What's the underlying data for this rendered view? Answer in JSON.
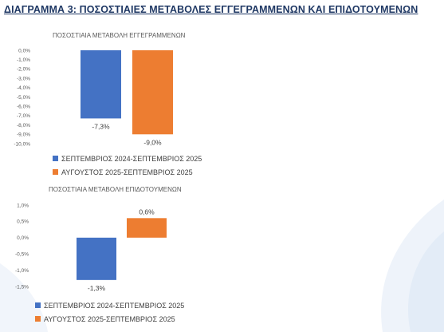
{
  "page": {
    "title": "ΔΙΑΓΡΑΜΜΑ 3: ΠΟΣΟΣΤΙΑΙΕΣ ΜΕΤΑΒΟΛΕΣ ΕΓΓΕΓΡΑΜΜΕΝΩΝ ΚΑΙ ΕΠΙΔΟΤΟΥΜΕΝΩΝ"
  },
  "colors": {
    "title": "#1f3864",
    "series_1": "#4472c4",
    "series_2": "#ed7d31",
    "text": "#595959"
  },
  "chart_data": [
    {
      "type": "bar",
      "title": "ΠΟΣΟΣΤΙΑΙΑ ΜΕΤΑΒΟΛΗ ΕΓΓΕΓΡΑΜΜΕΝΩΝ",
      "categories": [
        ""
      ],
      "series": [
        {
          "name": "ΣΕΠΤΕΜΒΡΙΟΣ 2024-ΣΕΠΤΕΜΒΡΙΟΣ 2025",
          "values": [
            -7.3
          ],
          "label": "-7,3%"
        },
        {
          "name": "ΑΥΓΟΥΣΤΟΣ 2025-ΣΕΠΤΕΜΒΡΙΟΣ 2025",
          "values": [
            -9.0
          ],
          "label": "-9,0%"
        }
      ],
      "ylim": [
        -10,
        0
      ],
      "yticks": [
        0,
        -1,
        -2,
        -3,
        -4,
        -5,
        -6,
        -7,
        -8,
        -9,
        -10
      ],
      "ytick_labels": [
        "0,0%",
        "-1,0%",
        "-2,0%",
        "-3,0%",
        "-4,0%",
        "-5,0%",
        "-6,0%",
        "-7,0%",
        "-8,0%",
        "-9,0%",
        "-10,0%"
      ],
      "grid": false,
      "legend": "bottom"
    },
    {
      "type": "bar",
      "title": "ΠΟΣΟΣΤΙΑΙΑ ΜΕΤΑΒΟΛΗ ΕΠΙΔΟΤΟΥΜΕΝΩΝ",
      "categories": [
        ""
      ],
      "series": [
        {
          "name": "ΣΕΠΤΕΜΒΡΙΟΣ 2024-ΣΕΠΤΕΜΒΡΙΟΣ 2025",
          "values": [
            -1.3
          ],
          "label": "-1,3%"
        },
        {
          "name": "ΑΥΓΟΥΣΤΟΣ 2025-ΣΕΠΤΕΜΒΡΙΟΣ 2025",
          "values": [
            0.6
          ],
          "label": "0,6%"
        }
      ],
      "ylim": [
        -1.5,
        1.0
      ],
      "yticks": [
        1.0,
        0.5,
        0,
        -0.5,
        -1.0,
        -1.5
      ],
      "ytick_labels": [
        "1,0%",
        "0,5%",
        "0,0%",
        "-0,5%",
        "-1,0%",
        "-1,5%"
      ],
      "grid": false,
      "legend": "bottom"
    }
  ]
}
